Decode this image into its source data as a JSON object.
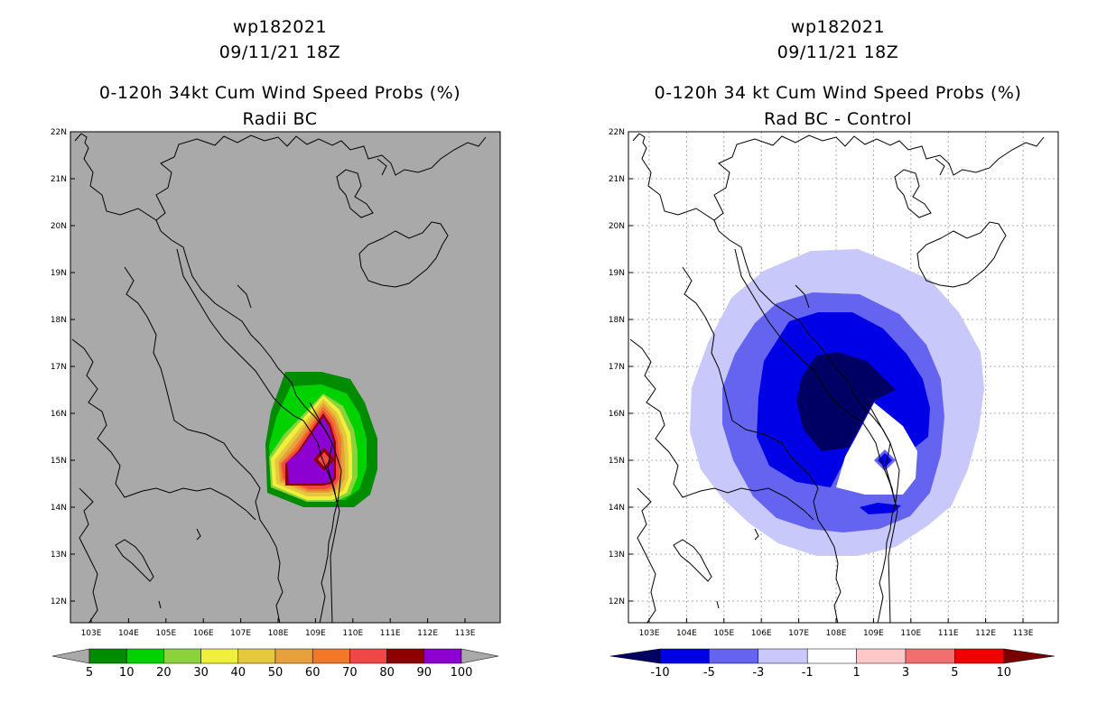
{
  "left": {
    "title_line1": "wp182021",
    "title_line2": "09/11/21 18Z",
    "title_line3": "0-120h 34kt Cum Wind Speed Probs (%)",
    "title_line4": "Radii BC",
    "lat_labels": [
      "22N",
      "21N",
      "20N",
      "19N",
      "18N",
      "17N",
      "16N",
      "15N",
      "14N",
      "13N",
      "12N"
    ],
    "lon_labels": [
      "103E",
      "104E",
      "105E",
      "106E",
      "107E",
      "108E",
      "109E",
      "110E",
      "111E",
      "112E",
      "113E"
    ],
    "colorbar_labels": [
      "5",
      "10",
      "20",
      "30",
      "40",
      "50",
      "60",
      "70",
      "80",
      "90",
      "100"
    ],
    "colors": [
      "#008c00",
      "#00d200",
      "#8cd23c",
      "#f0f03c",
      "#e6c83c",
      "#e6a03c",
      "#f07828",
      "#f04646",
      "#8c0000",
      "#8c00d2"
    ]
  },
  "right": {
    "title_line1": "wp182021",
    "title_line2": "09/11/21 18Z",
    "title_line3": "0-120h 34 kt Cum Wind Speed Probs (%)",
    "title_line4": "Rad BC - Control",
    "lat_labels": [
      "22N",
      "21N",
      "20N",
      "19N",
      "18N",
      "17N",
      "16N",
      "15N",
      "14N",
      "13N",
      "12N"
    ],
    "lon_labels": [
      "103E",
      "104E",
      "105E",
      "106E",
      "107E",
      "108E",
      "109E",
      "110E",
      "111E",
      "112E",
      "113E"
    ],
    "colorbar_labels": [
      "-10",
      "-5",
      "-3",
      "-1",
      "1",
      "3",
      "5",
      "10"
    ],
    "colors": [
      "#000064",
      "#0000e6",
      "#6464f0",
      "#c8c8fa",
      "#ffffff",
      "#ffc8c8",
      "#f07070",
      "#f00000",
      "#780000"
    ]
  }
}
